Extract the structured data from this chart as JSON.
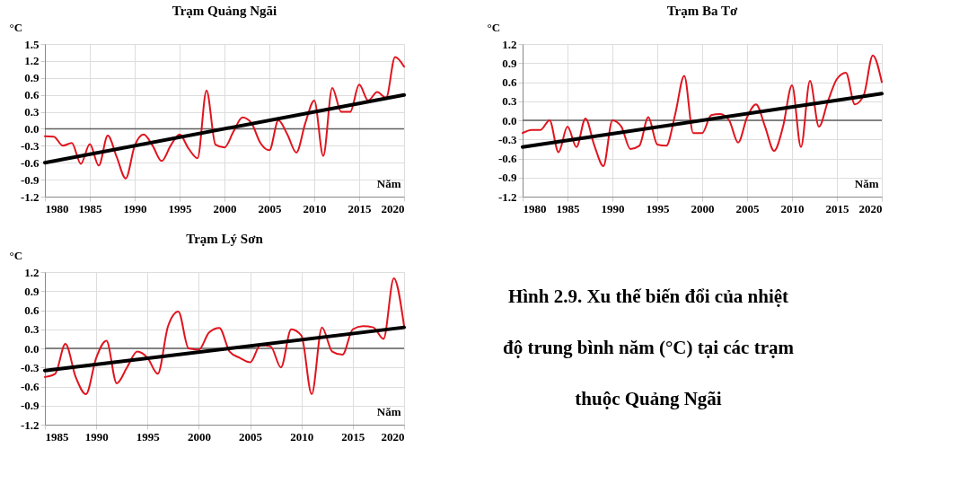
{
  "chart_data": [
    {
      "type": "line",
      "title": "Trạm Quảng Ngãi",
      "ylabel": "°C",
      "xlabel": "Năm",
      "xlim": [
        1980,
        2020
      ],
      "xticks": [
        1980,
        1985,
        1990,
        1995,
        2000,
        2005,
        2010,
        2015,
        2020
      ],
      "ylim": [
        -1.2,
        1.5
      ],
      "yticks": [
        {
          "value": -1.2,
          "label": "-1.2"
        },
        {
          "value": -0.9,
          "label": "-0.9"
        },
        {
          "value": -0.6,
          "label": "-0.6"
        },
        {
          "value": -0.3,
          "label": "-0.3"
        },
        {
          "value": 0,
          "label": "0.0"
        },
        {
          "value": 0.3,
          "label": "0.3"
        },
        {
          "value": 0.6,
          "label": "0.6"
        },
        {
          "value": 0.9,
          "label": "0.9"
        },
        {
          "value": 1.2,
          "label": "1.2"
        },
        {
          "value": 1.5,
          "label": "1.5"
        }
      ],
      "grid": true,
      "ref_lines": [
        {
          "axis": "y",
          "value": 0,
          "color": "#606060"
        }
      ],
      "series": [
        {
          "type": "line",
          "color": "#e0141e",
          "x": [
            1980,
            1981,
            1982,
            1983,
            1984,
            1985,
            1986,
            1987,
            1988,
            1989,
            1990,
            1991,
            1992,
            1993,
            1994,
            1995,
            1996,
            1997,
            1998,
            1999,
            2000,
            2001,
            2002,
            2003,
            2004,
            2005,
            2006,
            2007,
            2008,
            2009,
            2010,
            2011,
            2012,
            2013,
            2014,
            2015,
            2016,
            2017,
            2018,
            2019,
            2020
          ],
          "values": [
            -0.13,
            -0.14,
            -0.3,
            -0.25,
            -0.62,
            -0.27,
            -0.65,
            -0.12,
            -0.5,
            -0.88,
            -0.3,
            -0.1,
            -0.3,
            -0.57,
            -0.3,
            -0.1,
            -0.35,
            -0.52,
            0.68,
            -0.28,
            -0.33,
            -0.05,
            0.2,
            0.1,
            -0.25,
            -0.38,
            0.15,
            -0.1,
            -0.42,
            0.1,
            0.5,
            -0.48,
            0.72,
            0.3,
            0.3,
            0.78,
            0.5,
            0.65,
            0.55,
            1.27,
            1.1
          ]
        },
        {
          "type": "line",
          "color": "#000000",
          "x": [
            1980,
            2020
          ],
          "values": [
            -0.6,
            0.6
          ]
        }
      ]
    },
    {
      "type": "line",
      "title": "Trạm Ba Tơ",
      "ylabel": "°C",
      "xlabel": "Năm",
      "xlim": [
        1980,
        2020
      ],
      "xticks": [
        1980,
        1985,
        1990,
        1995,
        2000,
        2005,
        2010,
        2015,
        2020
      ],
      "ylim": [
        -1.2,
        1.2
      ],
      "yticks": [
        {
          "value": -1.2,
          "label": "-1.2"
        },
        {
          "value": -0.9,
          "label": "-0.9"
        },
        {
          "value": -0.6,
          "label": "-0.6"
        },
        {
          "value": -0.3,
          "label": "-0.3"
        },
        {
          "value": 0,
          "label": "0.0"
        },
        {
          "value": 0.3,
          "label": "0.3"
        },
        {
          "value": 0.6,
          "label": "0.6"
        },
        {
          "value": 0.9,
          "label": "0.9"
        },
        {
          "value": 1.2,
          "label": "1.2"
        }
      ],
      "grid": true,
      "ref_lines": [
        {
          "axis": "y",
          "value": 0,
          "color": "#606060"
        }
      ],
      "series": [
        {
          "type": "line",
          "color": "#e0141e",
          "x": [
            1980,
            1981,
            1982,
            1983,
            1984,
            1985,
            1986,
            1987,
            1988,
            1989,
            1990,
            1991,
            1992,
            1993,
            1994,
            1995,
            1996,
            1997,
            1998,
            1999,
            2000,
            2001,
            2002,
            2003,
            2004,
            2005,
            2006,
            2007,
            2008,
            2009,
            2010,
            2011,
            2012,
            2013,
            2014,
            2015,
            2016,
            2017,
            2018,
            2019,
            2020
          ],
          "values": [
            -0.2,
            -0.15,
            -0.15,
            0.0,
            -0.5,
            -0.1,
            -0.42,
            0.03,
            -0.4,
            -0.72,
            0.0,
            -0.1,
            -0.45,
            -0.4,
            0.05,
            -0.38,
            -0.4,
            0.1,
            0.7,
            -0.2,
            -0.2,
            0.08,
            0.1,
            0.0,
            -0.35,
            0.05,
            0.25,
            -0.1,
            -0.48,
            -0.1,
            0.55,
            -0.42,
            0.62,
            -0.1,
            0.3,
            0.65,
            0.75,
            0.25,
            0.4,
            1.02,
            0.6
          ]
        },
        {
          "type": "line",
          "color": "#000000",
          "x": [
            1980,
            2020
          ],
          "values": [
            -0.42,
            0.42
          ]
        }
      ]
    },
    {
      "type": "line",
      "title": "Trạm Lý Sơn",
      "ylabel": "°C",
      "xlabel": "Năm",
      "xlim": [
        1985,
        2020
      ],
      "xticks": [
        1985,
        1990,
        1995,
        2000,
        2005,
        2010,
        2015,
        2020
      ],
      "ylim": [
        -1.2,
        1.2
      ],
      "yticks": [
        {
          "value": -1.2,
          "label": "-1.2"
        },
        {
          "value": -0.9,
          "label": "-0.9"
        },
        {
          "value": -0.6,
          "label": "-0.6"
        },
        {
          "value": -0.3,
          "label": "-0.3"
        },
        {
          "value": 0,
          "label": "0.0"
        },
        {
          "value": 0.3,
          "label": "0.3"
        },
        {
          "value": 0.6,
          "label": "0.6"
        },
        {
          "value": 0.9,
          "label": "0.9"
        },
        {
          "value": 1.2,
          "label": "1.2"
        }
      ],
      "grid": true,
      "ref_lines": [
        {
          "axis": "y",
          "value": 0,
          "color": "#606060"
        }
      ],
      "series": [
        {
          "type": "line",
          "color": "#e0141e",
          "x": [
            1985,
            1986,
            1987,
            1988,
            1989,
            1990,
            1991,
            1992,
            1993,
            1994,
            1995,
            1996,
            1997,
            1998,
            1999,
            2000,
            2001,
            2002,
            2003,
            2004,
            2005,
            2006,
            2007,
            2008,
            2009,
            2010,
            2011,
            2012,
            2013,
            2014,
            2015,
            2016,
            2017,
            2018,
            2019,
            2020
          ],
          "values": [
            -0.45,
            -0.4,
            0.07,
            -0.45,
            -0.72,
            -0.15,
            0.12,
            -0.55,
            -0.3,
            -0.05,
            -0.15,
            -0.4,
            0.35,
            0.58,
            0.0,
            -0.02,
            0.25,
            0.32,
            -0.05,
            -0.15,
            -0.22,
            0.05,
            0.03,
            -0.3,
            0.3,
            0.2,
            -0.72,
            0.33,
            -0.05,
            -0.1,
            0.3,
            0.35,
            0.33,
            0.15,
            1.1,
            0.35
          ]
        },
        {
          "type": "line",
          "color": "#000000",
          "x": [
            1985,
            2020
          ],
          "values": [
            -0.35,
            0.33
          ]
        }
      ]
    },
    {
      "type": "other",
      "annotations": [
        "Hình 2.9. Xu thế biến đổi của nhiệt",
        "độ trung bình năm (°C) tại các trạm",
        "thuộc Quảng Ngãi"
      ]
    }
  ]
}
